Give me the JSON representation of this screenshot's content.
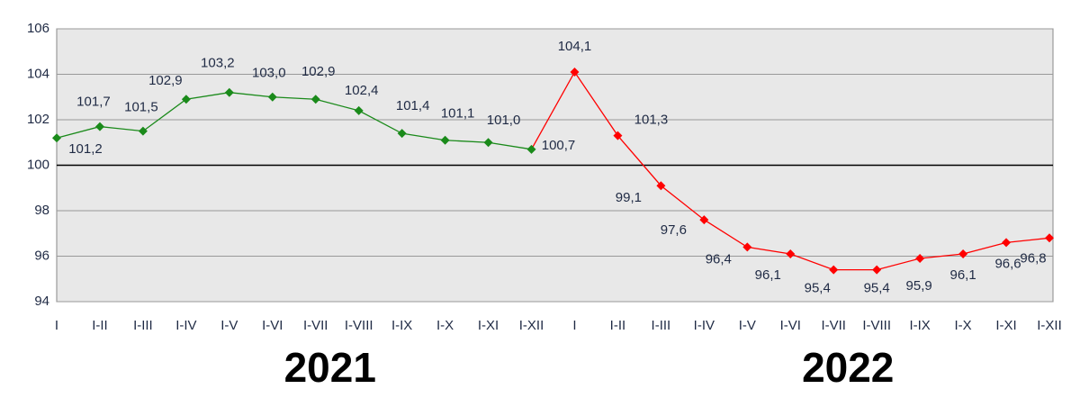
{
  "chart_data": {
    "type": "line",
    "categories": [
      "I",
      "I-II",
      "I-III",
      "I-IV",
      "I-V",
      "I-VI",
      "I-VII",
      "I-VIII",
      "I-IX",
      "I-X",
      "I-XI",
      "I-XII",
      "I",
      "I-II",
      "I-III",
      "I-IV",
      "I-V",
      "I-VI",
      "I-VII",
      "I-VIII",
      "I-IX",
      "I-X",
      "I-XI",
      "I-XII"
    ],
    "series": [
      {
        "name": "2021",
        "color": "#1a8a1a",
        "values": [
          101.2,
          101.7,
          101.5,
          102.9,
          103.2,
          103.0,
          102.9,
          102.4,
          101.4,
          101.1,
          101.0,
          100.7,
          null,
          null,
          null,
          null,
          null,
          null,
          null,
          null,
          null,
          null,
          null,
          null
        ],
        "value_labels": [
          "101,2",
          "101,7",
          "101,5",
          "102,9",
          "103,2",
          "103,0",
          "102,9",
          "102,4",
          "101,4",
          "101,1",
          "101,0",
          "100,7",
          null,
          null,
          null,
          null,
          null,
          null,
          null,
          null,
          null,
          null,
          null,
          null
        ]
      },
      {
        "name": "2022",
        "color": "#ff0000",
        "values": [
          null,
          null,
          null,
          null,
          null,
          null,
          null,
          null,
          null,
          null,
          null,
          null,
          104.1,
          101.3,
          99.1,
          97.6,
          96.4,
          96.1,
          95.4,
          95.4,
          95.9,
          96.1,
          96.6,
          96.8
        ],
        "value_labels": [
          null,
          null,
          null,
          null,
          null,
          null,
          null,
          null,
          null,
          null,
          null,
          null,
          "104,1",
          "101,3",
          "99,1",
          "97,6",
          "96,4",
          "96,1",
          "95,4",
          "95,4",
          "95,9",
          "96,1",
          "96,6",
          "96,8"
        ]
      }
    ],
    "ylim": [
      94,
      106
    ],
    "yticks": [
      94,
      96,
      98,
      100,
      102,
      104,
      106
    ],
    "grid": true,
    "axis_crossing": 100
  }
}
